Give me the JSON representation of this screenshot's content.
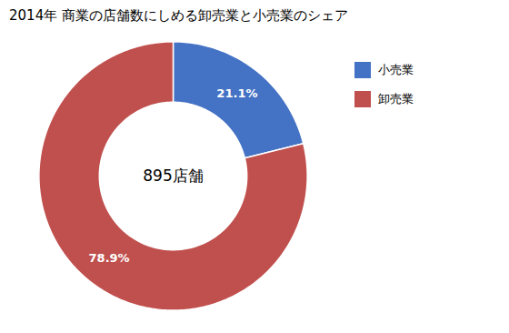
{
  "chart_data": {
    "type": "pie",
    "title": "2014年 商業の店舗数にしめる卸売業と小売業のシェア",
    "categories": [
      "小売業",
      "卸売業"
    ],
    "values": [
      21.1,
      78.9
    ],
    "value_labels": [
      "21.1%",
      "78.9%"
    ],
    "colors": [
      "#4472C4",
      "#C0504D"
    ],
    "data_labels": true,
    "annotation": "895店舗",
    "legend": "upper right"
  }
}
